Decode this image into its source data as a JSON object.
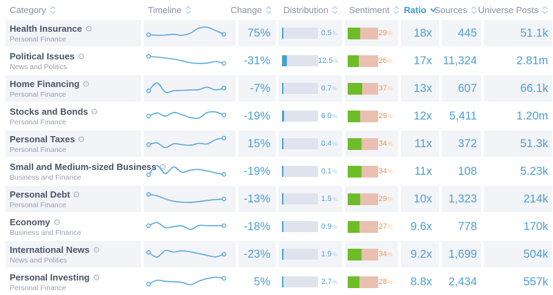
{
  "header": {
    "columns": [
      {
        "label": "Category",
        "sort": "none"
      },
      {
        "label": "Timeline",
        "sort": "none"
      },
      {
        "label": "Change",
        "sort": "none"
      },
      {
        "label": "Distribution",
        "sort": "none"
      },
      {
        "label": "Sentiment",
        "sort": "none"
      },
      {
        "label": "Ratio",
        "sort": "desc"
      },
      {
        "label": "Sources",
        "sort": "none"
      },
      {
        "label": "Universe Posts",
        "sort": "none"
      }
    ]
  },
  "units": {
    "percent": "%"
  },
  "rows": [
    {
      "category": "Health Insurance",
      "subcategory": "Personal Finance",
      "change": "75%",
      "distribution_pct": 0.5,
      "distribution_label": "0.5",
      "sentiment_pct": 29,
      "sentiment_label": "29",
      "ratio": "18x",
      "sources": "445",
      "universe_posts": "51.1k",
      "timeline": [
        60,
        63,
        62,
        58,
        63,
        52,
        25,
        20,
        38,
        58
      ]
    },
    {
      "category": "Political Issues",
      "subcategory": "News and Politics",
      "change": "-31%",
      "distribution_pct": 12.5,
      "distribution_label": "12.5",
      "sentiment_pct": 26,
      "sentiment_label": "26",
      "ratio": "17x",
      "sources": "11,324",
      "universe_posts": "2.81m",
      "timeline": [
        28,
        32,
        37,
        43,
        52,
        62,
        66,
        64,
        56,
        66
      ]
    },
    {
      "category": "Home Financing",
      "subcategory": "Personal Finance",
      "change": "-7%",
      "distribution_pct": 0.7,
      "distribution_label": "0.7",
      "sentiment_pct": 37,
      "sentiment_label": "37",
      "ratio": "13x",
      "sources": "607",
      "universe_posts": "66.1k",
      "timeline": [
        65,
        22,
        72,
        64,
        62,
        60,
        58,
        45,
        60,
        50
      ]
    },
    {
      "category": "Stocks and Bonds",
      "subcategory": "Personal Finance",
      "change": "-19%",
      "distribution_pct": 6.0,
      "distribution_label": "6.0",
      "sentiment_pct": 29,
      "sentiment_label": "29",
      "ratio": "12x",
      "sources": "5,411",
      "universe_posts": "1.20m",
      "timeline": [
        52,
        35,
        52,
        33,
        45,
        60,
        63,
        33,
        30,
        47
      ]
    },
    {
      "category": "Personal Taxes",
      "subcategory": "Personal Finance",
      "change": "15%",
      "distribution_pct": 0.4,
      "distribution_label": "0.4",
      "sentiment_pct": 34,
      "sentiment_label": "34",
      "ratio": "11x",
      "sources": "372",
      "universe_posts": "51.3k",
      "timeline": [
        57,
        48,
        73,
        52,
        57,
        60,
        50,
        53,
        30,
        22
      ]
    },
    {
      "category": "Small and Medium-sized Business",
      "subcategory": "Business and Finance",
      "change": "-19%",
      "distribution_pct": 0.1,
      "distribution_label": "0.1",
      "sentiment_pct": 34,
      "sentiment_label": "34",
      "ratio": "11x",
      "sources": "108",
      "universe_posts": "5.23k",
      "timeline": [
        70,
        22,
        64,
        28,
        57,
        45,
        42,
        50,
        60,
        68
      ]
    },
    {
      "category": "Personal Debt",
      "subcategory": "Personal Finance",
      "change": "-13%",
      "distribution_pct": 1.5,
      "distribution_label": "1.5",
      "sentiment_pct": 29,
      "sentiment_label": "29",
      "ratio": "10x",
      "sources": "1,323",
      "universe_posts": "214k",
      "timeline": [
        27,
        35,
        52,
        64,
        69,
        70,
        66,
        60,
        55,
        52
      ]
    },
    {
      "category": "Economy",
      "subcategory": "Business and Finance",
      "change": "-18%",
      "distribution_pct": 0.9,
      "distribution_label": "0.9",
      "sentiment_pct": 27,
      "sentiment_label": "27",
      "ratio": "9.6x",
      "sources": "778",
      "universe_posts": "170k",
      "timeline": [
        47,
        30,
        57,
        52,
        48,
        67,
        46,
        47,
        47,
        47
      ]
    },
    {
      "category": "International News",
      "subcategory": "News and Politics",
      "change": "-23%",
      "distribution_pct": 1.9,
      "distribution_label": "1.9",
      "sentiment_pct": 34,
      "sentiment_label": "34",
      "ratio": "9.2x",
      "sources": "1,699",
      "universe_posts": "504k",
      "timeline": [
        42,
        67,
        32,
        40,
        33,
        39,
        48,
        58,
        66,
        52
      ]
    },
    {
      "category": "Personal Investing",
      "subcategory": "Personal Finance",
      "change": "5%",
      "distribution_pct": 2.7,
      "distribution_label": "2.7",
      "sentiment_pct": 28,
      "sentiment_label": "28",
      "ratio": "8.8x",
      "sources": "2,434",
      "universe_posts": "557k",
      "timeline": [
        64,
        43,
        49,
        51,
        55,
        67,
        48,
        34,
        27,
        33
      ]
    }
  ],
  "colors": {
    "accent_blue": "#4d9fd6",
    "header_active_blue": "#3d9bd5",
    "sparkline_blue": "#58a9dc",
    "distribution_fill": "#4aa0d5",
    "distribution_track": "#dfe3ee",
    "sentiment_green": "#6dbd28",
    "sentiment_negative": "#e9bfb0",
    "sentiment_text_orange": "#f0914a",
    "header_gray": "#8a92a6",
    "row_background": "#f3f4f8"
  }
}
